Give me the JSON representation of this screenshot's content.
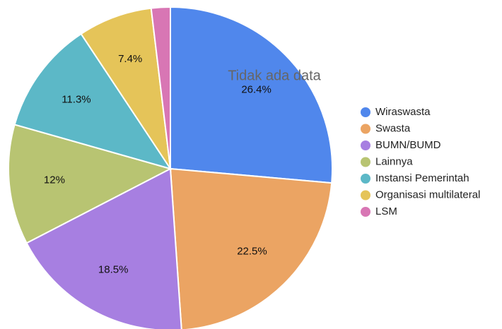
{
  "chart_data": {
    "type": "pie",
    "annotation": "Tidak ada data",
    "categories": [
      "Wiraswasta",
      "Swasta",
      "BUMN/BUMD",
      "Lainnya",
      "Instansi Pemerintah",
      "Organisasi multilateral",
      "LSM"
    ],
    "values": [
      26.4,
      22.5,
      18.5,
      12,
      11.3,
      7.4,
      1.9
    ],
    "value_labels": [
      "26.4%",
      "22.5%",
      "18.5%",
      "12%",
      "11.3%",
      "7.4%",
      null
    ],
    "colors": [
      "#5087ec",
      "#eba463",
      "#a77fe1",
      "#b8c472",
      "#5cb8c7",
      "#e5c459",
      "#d876b4"
    ],
    "legend": "right"
  }
}
